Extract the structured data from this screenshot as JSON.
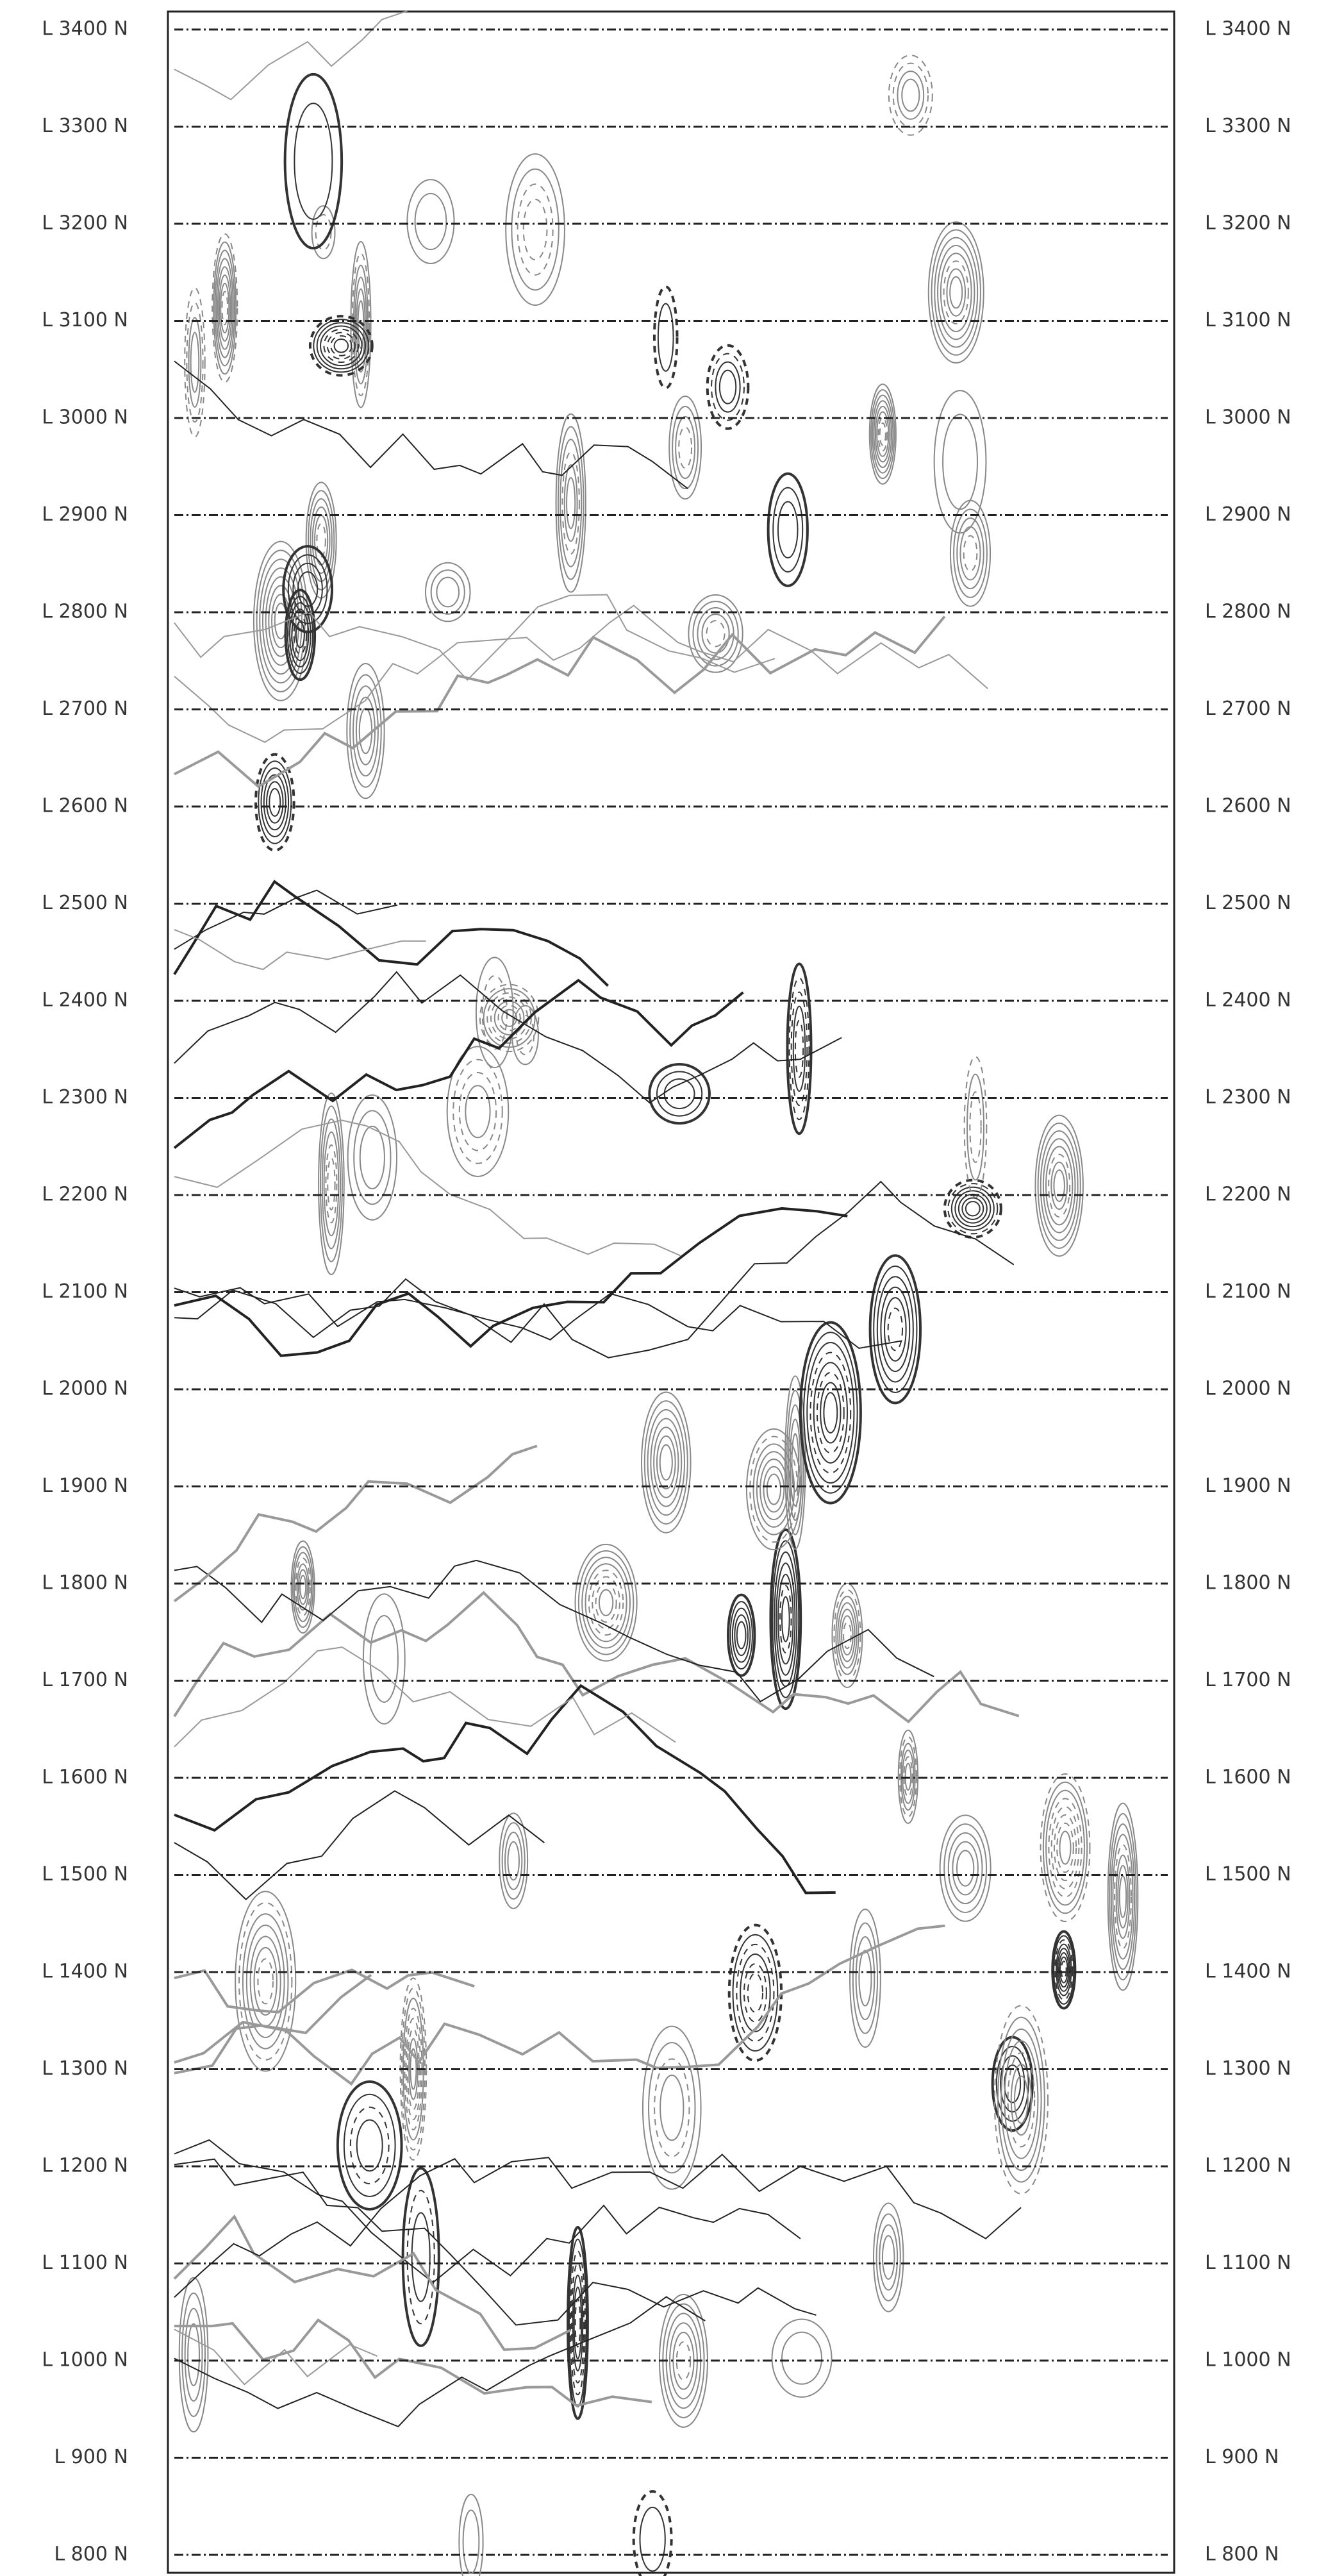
{
  "lines": [
    "L 3400 N",
    "L 3300 N",
    "L 3200 N",
    "L 3100 N",
    "L 3000 N",
    "L 2900 N",
    "L 2800 N",
    "L 2700 N",
    "L 2600 N",
    "L 2500 N",
    "L 2400 N",
    "L 2300 N",
    "L 2200 N",
    "L 2100 N",
    "L 2000 N",
    "L 1900 N",
    "L 1800 N",
    "L 1700 N",
    "L 1600 N",
    "L 1500 N",
    "L 1400 N",
    "L 1300 N",
    "L 1200 N",
    "L 1100 N",
    "L 1000 N",
    "L 900 N",
    "L 800 N"
  ]
}
